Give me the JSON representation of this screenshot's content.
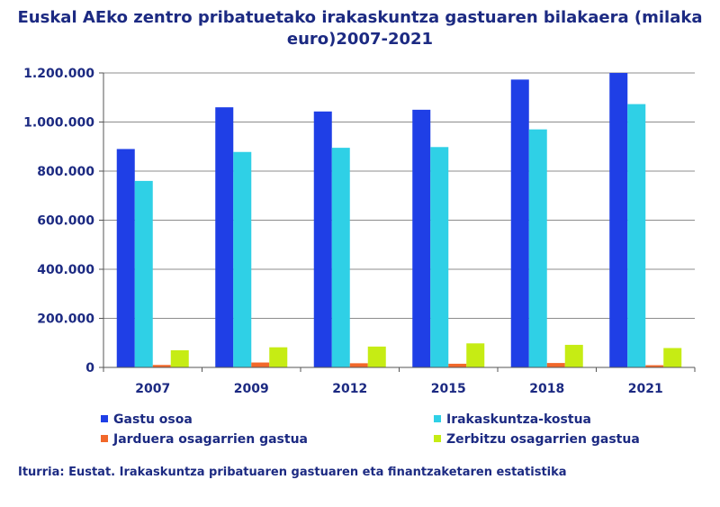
{
  "chart_data": {
    "type": "bar",
    "title": "Euskal AEko zentro pribatuetako irakaskuntza gastuaren bilakaera (milaka euro)2007-2021",
    "title_line1": "Euskal AEko zentro pribatuetako irakaskuntza gastuaren bilakaera (milaka",
    "title_line2": "euro)2007-2021",
    "categories": [
      "2007",
      "2009",
      "2012",
      "2015",
      "2018",
      "2021"
    ],
    "ylim": [
      0,
      1200000
    ],
    "yticks": [
      0,
      200000,
      400000,
      600000,
      800000,
      1000000,
      1200000
    ],
    "ytick_labels": [
      "0",
      "200.000",
      "400.000",
      "600.000",
      "800.000",
      "1.000.000",
      "1.200.000"
    ],
    "series": [
      {
        "name": "Gastu osoa",
        "color": "#1f3fe6",
        "values": [
          890000,
          1060000,
          1043000,
          1050000,
          1173000,
          1200000
        ]
      },
      {
        "name": "Irakaskuntza-kostua",
        "color": "#2fd0e6",
        "values": [
          760000,
          878000,
          895000,
          898000,
          970000,
          1073000
        ]
      },
      {
        "name": "Jarduera osagarrien gastua",
        "color": "#f2682a",
        "values": [
          10000,
          20000,
          17000,
          15000,
          18000,
          9000
        ]
      },
      {
        "name": "Zerbitzu osagarrien gastua",
        "color": "#c6ec14",
        "values": [
          70000,
          82000,
          85000,
          98000,
          92000,
          79000
        ]
      }
    ],
    "legend_position": "bottom",
    "source": "Iturria: Eustat. Irakaskuntza pribatuaren gastuaren eta finantzaketaren estatistika"
  }
}
